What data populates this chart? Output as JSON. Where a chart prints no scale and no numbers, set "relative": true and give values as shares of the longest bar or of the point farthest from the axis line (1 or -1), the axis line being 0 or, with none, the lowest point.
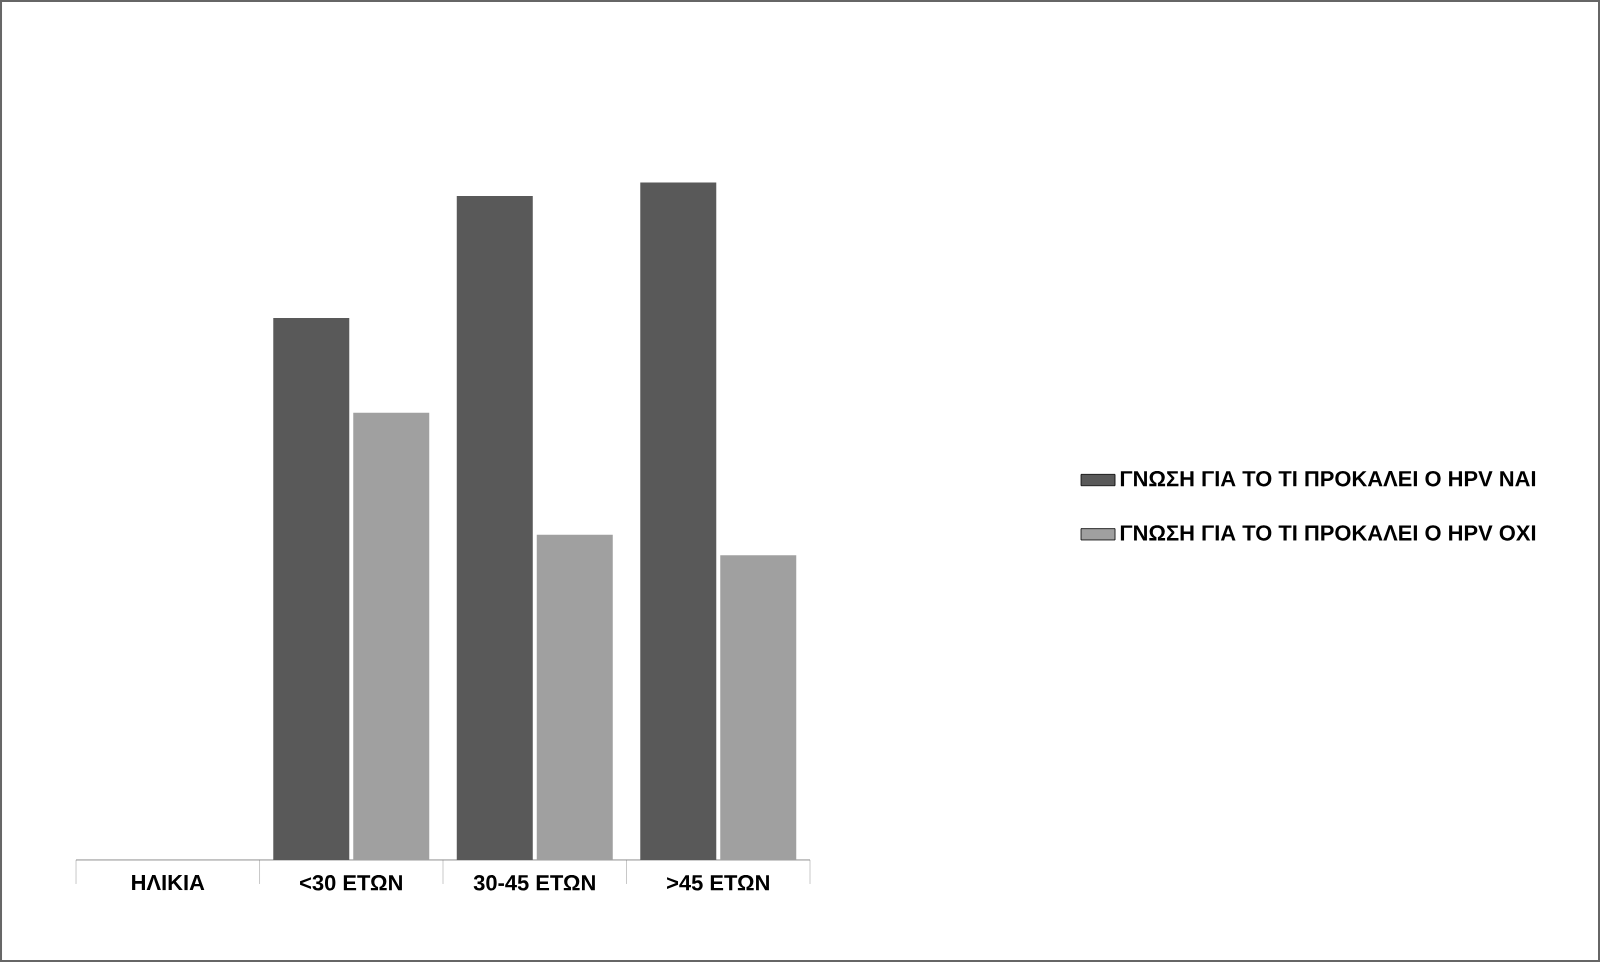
{
  "chart_data": {
    "type": "bar",
    "relative": true,
    "legend": "right",
    "categories": [
      "ΗΛΙΚΙΑ",
      "<30 ΕΤΩΝ",
      "30-45 ΕΤΩΝ",
      ">45 ΕΤΩΝ"
    ],
    "series": [
      {
        "name": "ΓΝΩΣΗ ΓΙΑ ΤΟ ΤΙ ΠΡΟΚΑΛΕΙ Ο HPV ΝΑΙ",
        "color": "#595959",
        "values": [
          null,
          0.8,
          0.98,
          1
        ]
      },
      {
        "name": "ΓΝΩΣΗ ΓΙΑ ΤΟ ΤΙ ΠΡΟΚΑΛΕΙ Ο HPV ΟΧΙ",
        "color": "#a0a0a0",
        "values": [
          null,
          0.66,
          0.48,
          0.45
        ]
      }
    ]
  }
}
